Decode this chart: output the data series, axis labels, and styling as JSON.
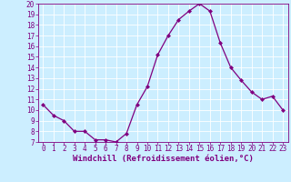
{
  "x": [
    0,
    1,
    2,
    3,
    4,
    5,
    6,
    7,
    8,
    9,
    10,
    11,
    12,
    13,
    14,
    15,
    16,
    17,
    18,
    19,
    20,
    21,
    22,
    23
  ],
  "y": [
    10.5,
    9.5,
    9.0,
    8.0,
    8.0,
    7.2,
    7.2,
    7.0,
    7.8,
    10.5,
    12.2,
    15.2,
    17.0,
    18.5,
    19.3,
    20.0,
    19.3,
    16.3,
    14.0,
    12.8,
    11.7,
    11.0,
    11.3,
    10.0
  ],
  "line_color": "#800080",
  "marker": "D",
  "marker_size": 2,
  "bg_color": "#cceeff",
  "grid_color": "#ffffff",
  "title": "Windchill (Refroidissement éolien,°C)",
  "xlim": [
    -0.5,
    23.5
  ],
  "ylim": [
    7,
    20
  ],
  "yticks": [
    7,
    8,
    9,
    10,
    11,
    12,
    13,
    14,
    15,
    16,
    17,
    18,
    19,
    20
  ],
  "xticks": [
    0,
    1,
    2,
    3,
    4,
    5,
    6,
    7,
    8,
    9,
    10,
    11,
    12,
    13,
    14,
    15,
    16,
    17,
    18,
    19,
    20,
    21,
    22,
    23
  ],
  "tick_color": "#800080",
  "tick_fontsize": 5.5,
  "xlabel_fontsize": 6.5,
  "spine_color": "#800080",
  "linewidth": 0.9
}
